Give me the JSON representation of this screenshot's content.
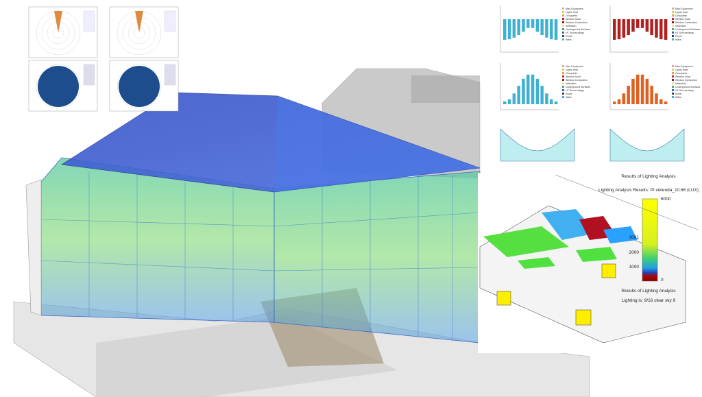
{
  "energy_legend": [
    "Misc Equipment",
    "Lights Heat",
    "Occupants",
    "Window Solar",
    "Window Conduction",
    "Infiltration",
    "Underground Surfaces",
    "HT Surroundings",
    "Roofs",
    "Walls"
  ],
  "lighting": {
    "heading": "Results of Lighting Analysis",
    "title": "Lighting Analysis Results: PI vivienda_10.66 (LUX)",
    "scale_labels": [
      6000,
      3001,
      2000,
      1000,
      0
    ],
    "caption": "Results of Lighting Analysis",
    "sky": "Lighting is: 9/16 clear sky 9"
  }
}
